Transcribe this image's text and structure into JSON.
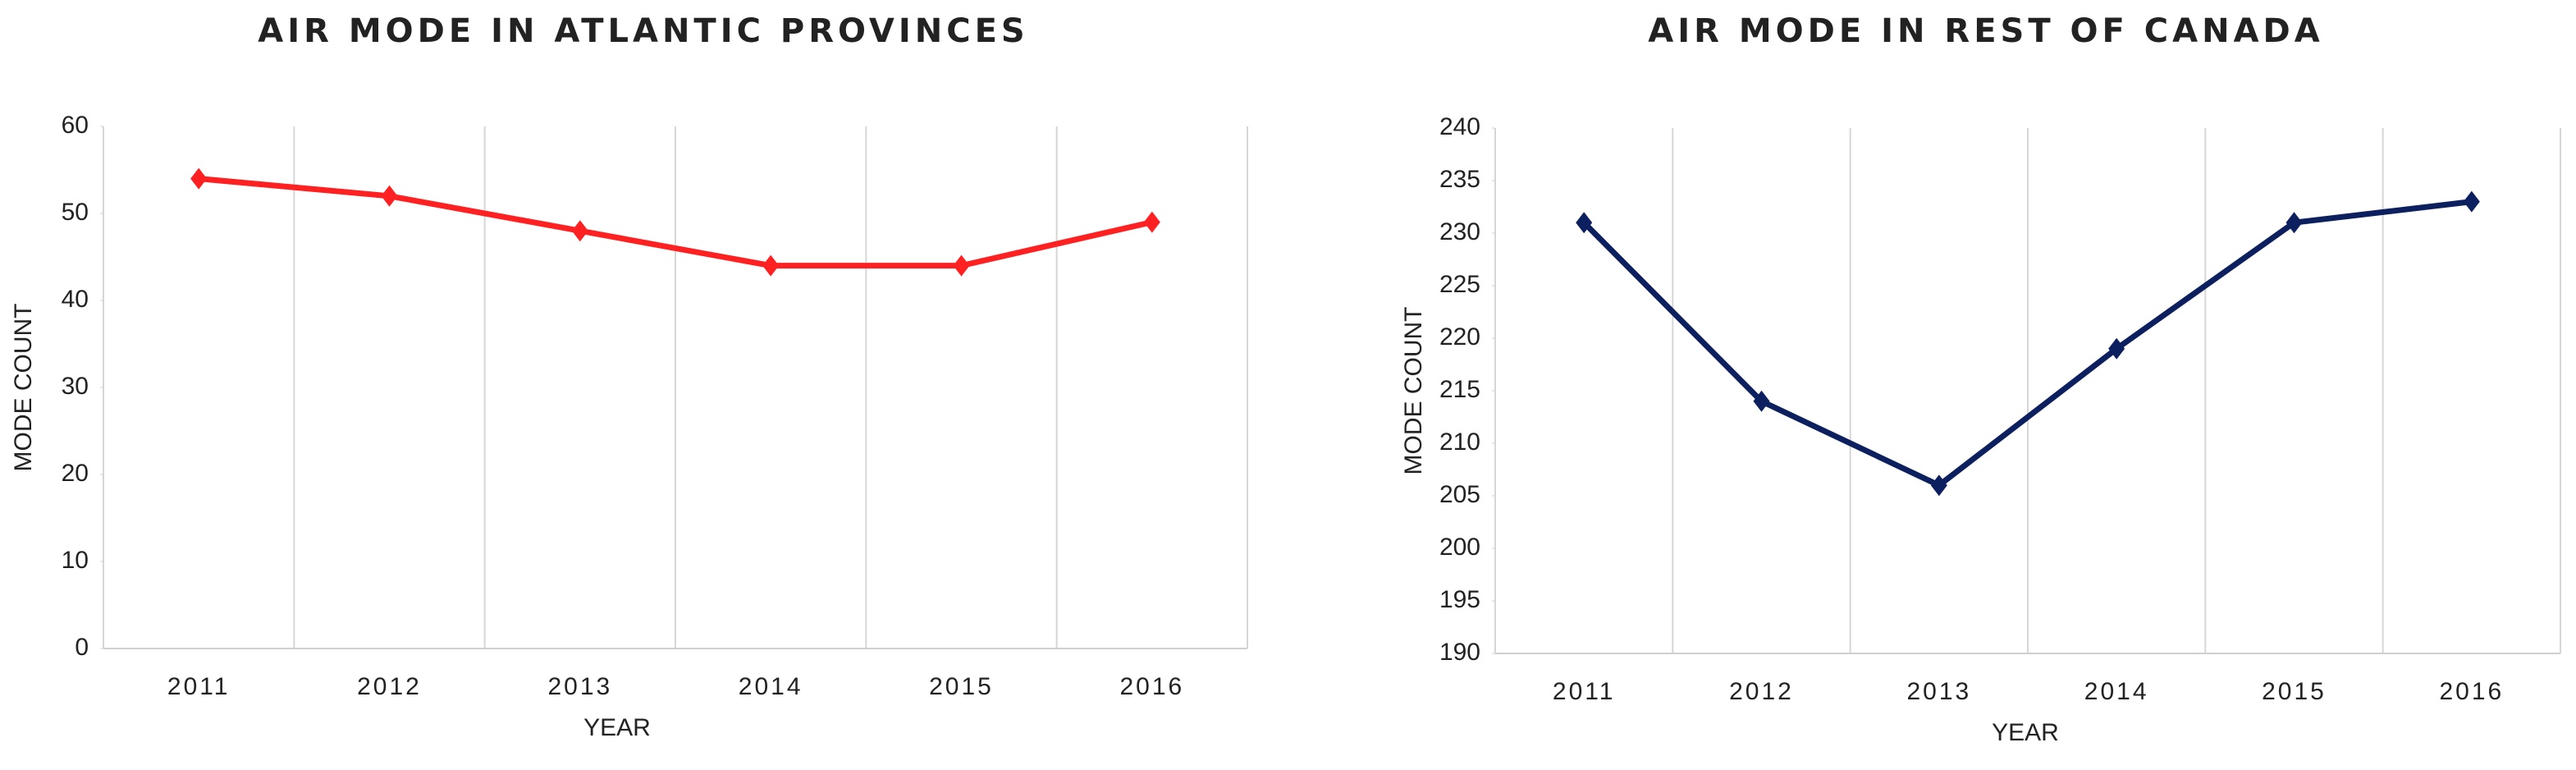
{
  "chart_data": [
    {
      "type": "line",
      "title": "AIR MODE IN ATLANTIC PROVINCES",
      "x_label": "YEAR",
      "y_label": "MODE COUNT",
      "categories": [
        "2011",
        "2012",
        "2013",
        "2014",
        "2015",
        "2016"
      ],
      "values": [
        54,
        52,
        48,
        44,
        44,
        49
      ],
      "color": "#ff2121",
      "ylim": [
        0,
        60
      ],
      "yticks": [
        0,
        10,
        20,
        30,
        40,
        50,
        60
      ],
      "grid": true
    },
    {
      "type": "line",
      "title": "AIR MODE IN REST OF CANADA",
      "x_label": "YEAR",
      "y_label": "MODE COUNT",
      "categories": [
        "2011",
        "2012",
        "2013",
        "2014",
        "2015",
        "2016"
      ],
      "values": [
        231,
        214,
        206,
        219,
        231,
        233
      ],
      "color": "#0c1f5e",
      "ylim": [
        190,
        240
      ],
      "yticks": [
        190,
        195,
        200,
        205,
        210,
        215,
        220,
        225,
        230,
        235,
        240
      ],
      "grid": true
    }
  ]
}
